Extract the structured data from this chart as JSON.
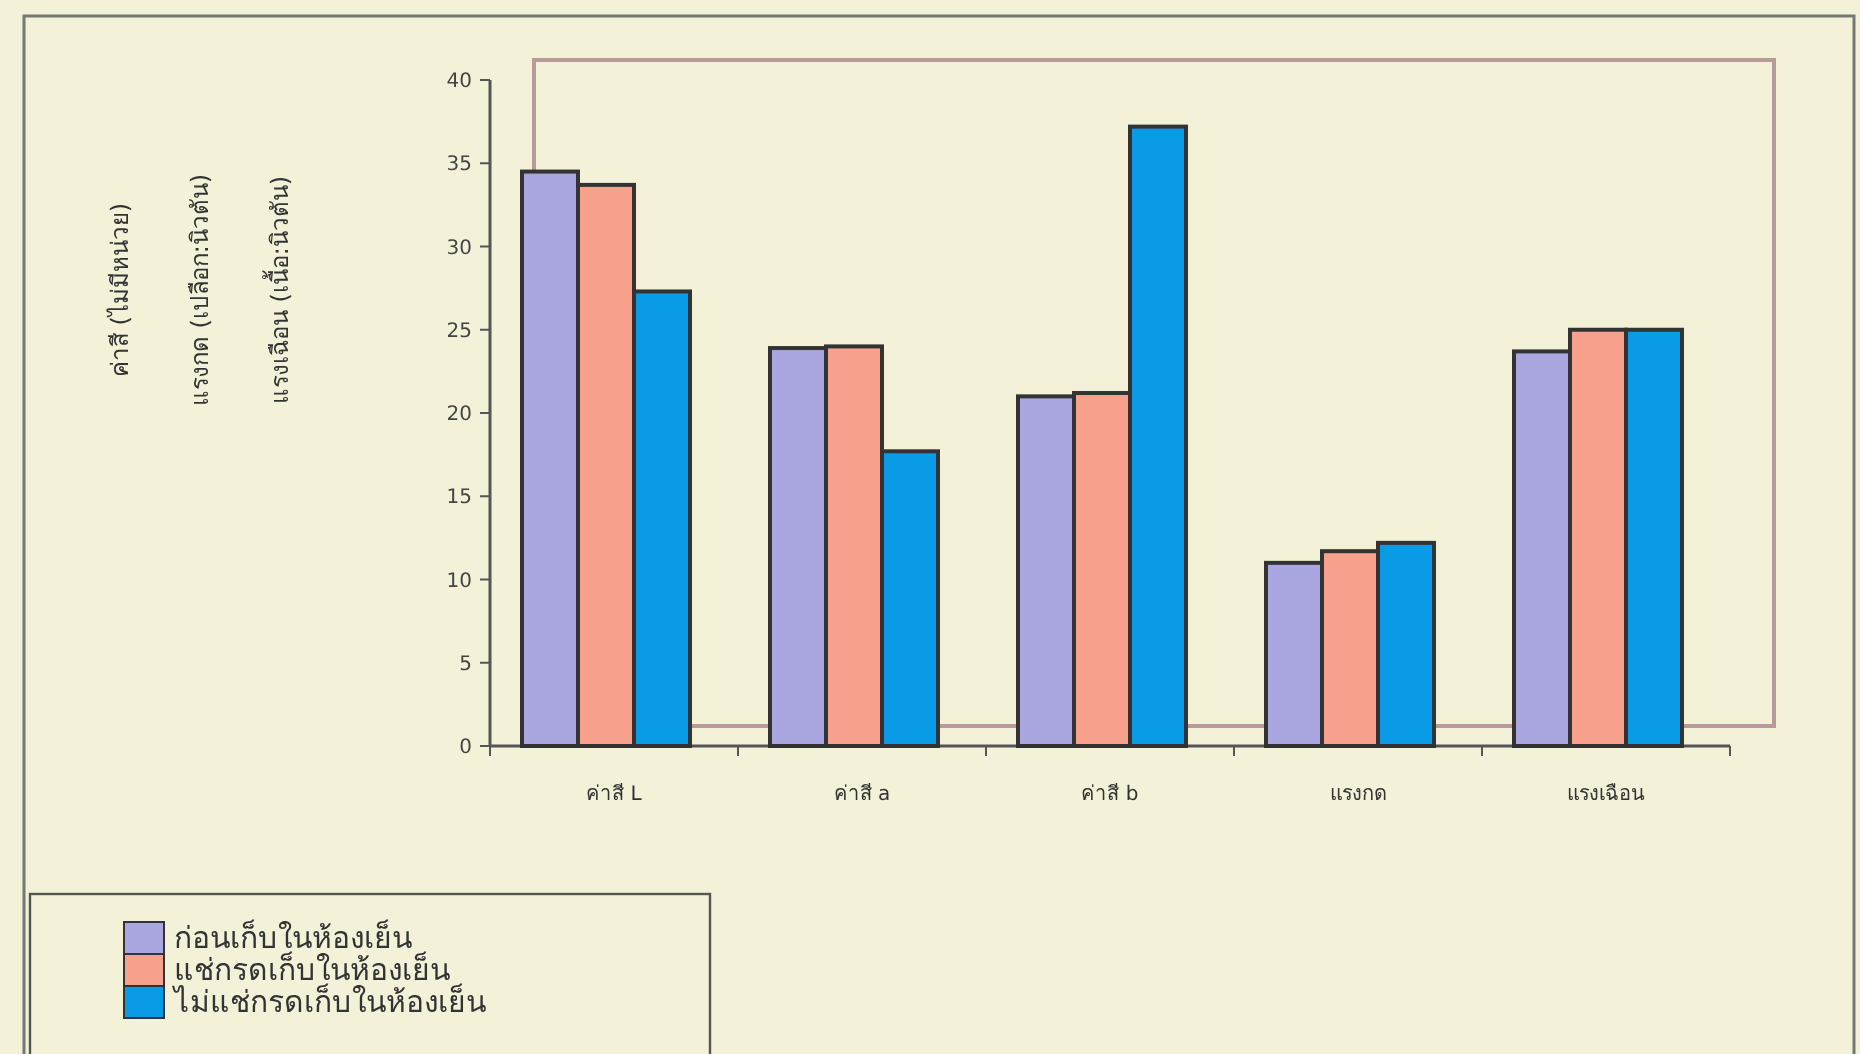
{
  "chart_data": {
    "type": "bar",
    "ylabel": "ค่าสี (ไม่มีหน่วย)\nแรงกด (เปลือก:นิวตัน)\nแรงเฉือน (เนื้อ:นิวตัน)",
    "categories": [
      "ค่าสี L",
      "ค่าสี a",
      "ค่าสี b",
      "แรงกด",
      "แรงเฉือน"
    ],
    "series": [
      {
        "name": "ก่อนเก็บในห้องเย็น",
        "color": "#aaa7e0",
        "values": [
          34.5,
          23.9,
          21.0,
          11.0,
          23.7
        ]
      },
      {
        "name": "แช่กรดเก็บในห้องเย็น",
        "color": "#f8a18c",
        "values": [
          33.7,
          24.0,
          21.2,
          11.7,
          25.0
        ]
      },
      {
        "name": "ไม่แช่กรดเก็บในห้องเย็น",
        "color": "#0a9be6",
        "values": [
          27.3,
          17.7,
          37.2,
          12.2,
          25.0
        ]
      }
    ],
    "ylim": [
      0,
      40
    ],
    "yticks": [
      0,
      5,
      10,
      15,
      20,
      25,
      30,
      35,
      40
    ],
    "grid": false,
    "legend": "bottom left"
  }
}
